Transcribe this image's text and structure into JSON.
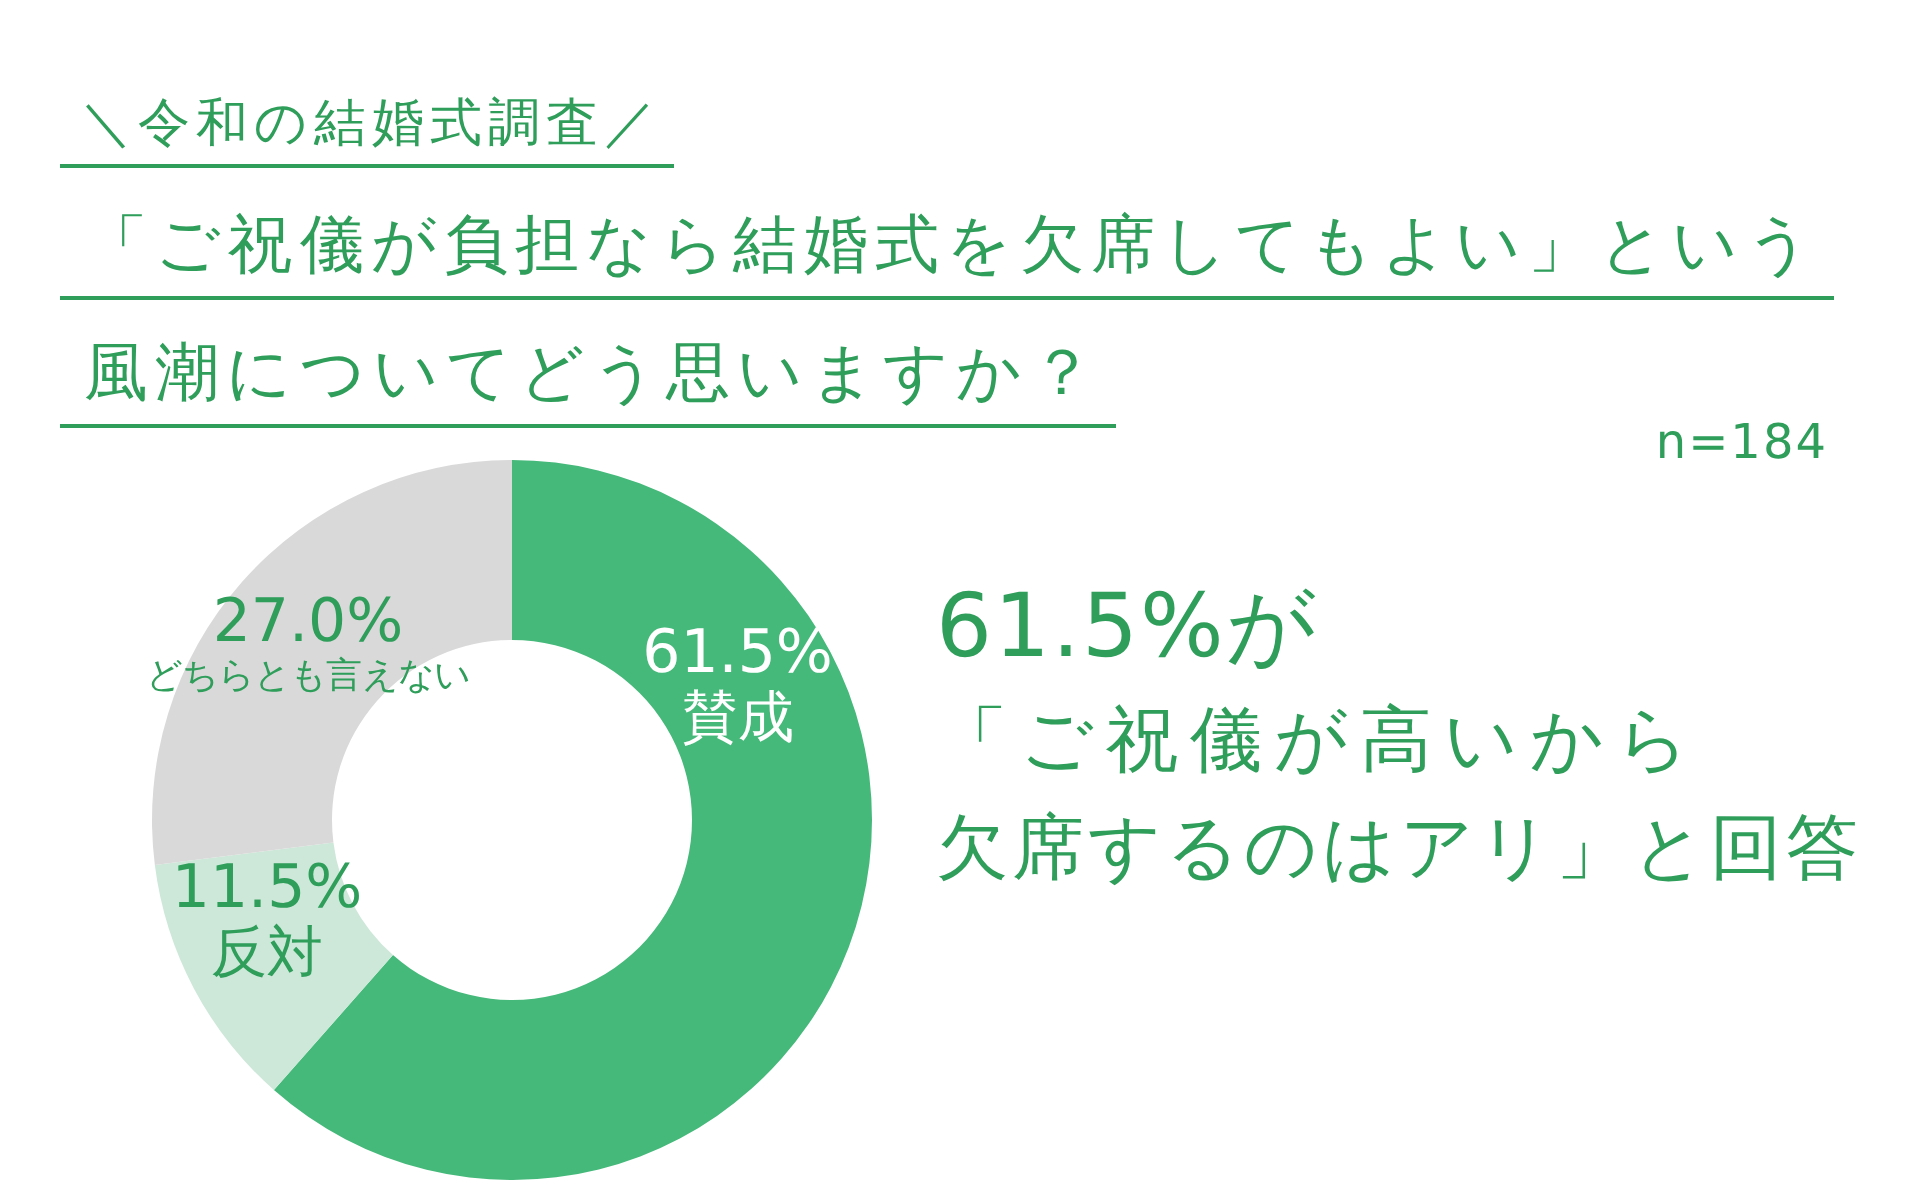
{
  "chart_data": {
    "type": "donut",
    "title": "＼令和の結婚式調査／",
    "subtitle": "「ご祝儀が負担なら結婚式を欠席してもよい」という風潮についてどう思いますか？",
    "categories": [
      "賛成",
      "反対",
      "どちらとも言えない"
    ],
    "values": [
      61.5,
      11.5,
      27.0
    ],
    "value_labels": [
      "61.5%",
      "11.5%",
      "27.0%"
    ],
    "colors": [
      "#45b97a",
      "#cde8d9",
      "#d9d9d9"
    ],
    "annotations": [
      "n=184",
      "61.5%が「ご祝儀が高いから欠席するのはアリ」と回答"
    ]
  }
}
